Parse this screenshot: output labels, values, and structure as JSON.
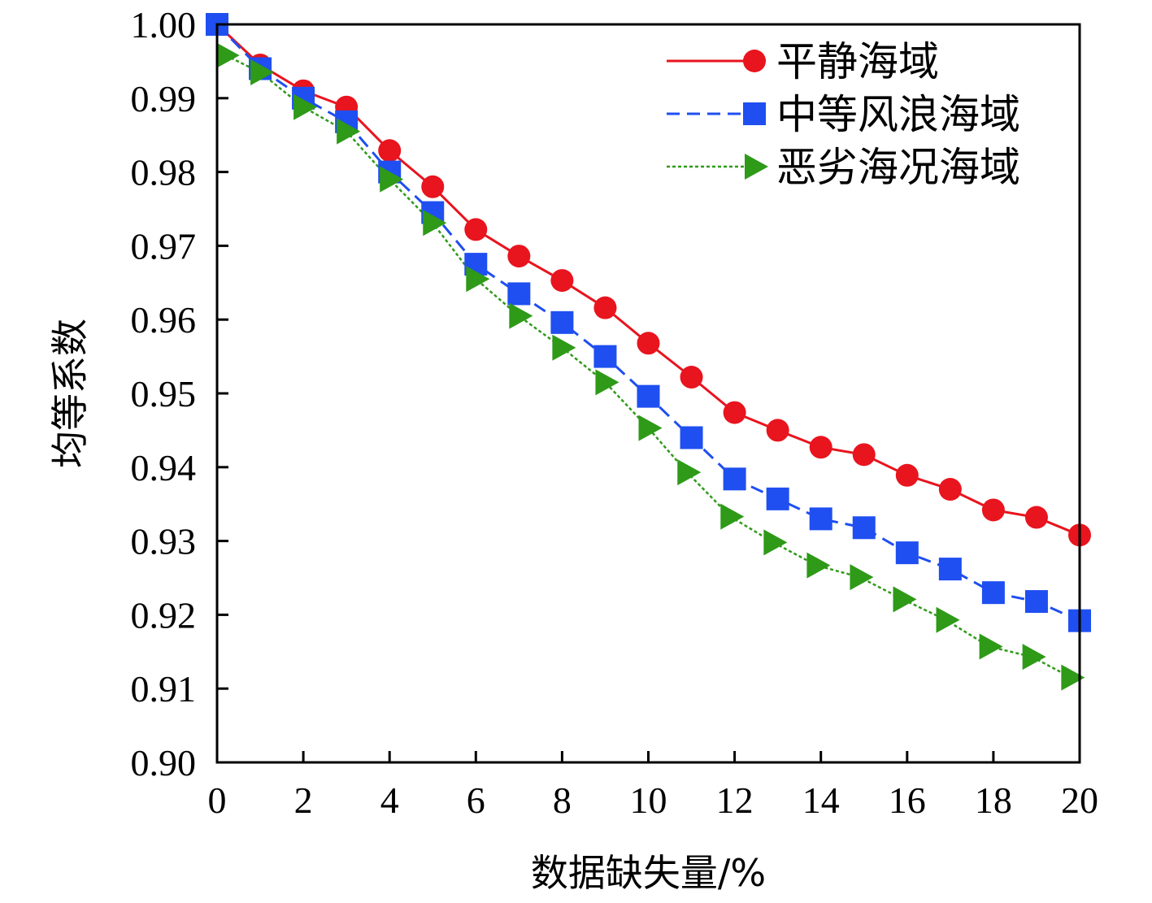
{
  "chart_data": {
    "type": "line",
    "title": "",
    "xlabel": "数据缺失量/%",
    "ylabel": "均等系数",
    "xlim": [
      0,
      20
    ],
    "ylim": [
      0.9,
      1.0
    ],
    "xticks": [
      0,
      2,
      4,
      6,
      8,
      10,
      12,
      14,
      16,
      18,
      20
    ],
    "xtick_labels": [
      "0",
      "2",
      "4",
      "6",
      "8",
      "10",
      "12",
      "14",
      "16",
      "18",
      "20"
    ],
    "yticks": [
      0.9,
      0.91,
      0.92,
      0.93,
      0.94,
      0.95,
      0.96,
      0.97,
      0.98,
      0.99,
      1.0
    ],
    "ytick_labels": [
      "0.90",
      "0.91",
      "0.92",
      "0.93",
      "0.94",
      "0.95",
      "0.96",
      "0.97",
      "0.98",
      "0.99",
      "1.00"
    ],
    "grid": false,
    "legend_position": "top-right",
    "series": [
      {
        "name": "平静海域",
        "color": "#e8141e",
        "marker": "circle",
        "line_style": "solid",
        "x": [
          0,
          1,
          2,
          3,
          4,
          5,
          6,
          7,
          8,
          9,
          10,
          11,
          12,
          13,
          14,
          15,
          16,
          17,
          18,
          19,
          20
        ],
        "values": [
          1.0,
          0.9945,
          0.991,
          0.9888,
          0.9829,
          0.978,
          0.9722,
          0.9686,
          0.9653,
          0.9616,
          0.9568,
          0.9522,
          0.9474,
          0.945,
          0.9427,
          0.9417,
          0.9389,
          0.937,
          0.9342,
          0.9332,
          0.9308
        ]
      },
      {
        "name": "中等风浪海域",
        "color": "#1f4ff0",
        "marker": "square",
        "line_style": "dashed",
        "x": [
          0,
          1,
          2,
          3,
          4,
          5,
          6,
          7,
          8,
          9,
          10,
          11,
          12,
          13,
          14,
          15,
          16,
          17,
          18,
          19,
          20
        ],
        "values": [
          1.0,
          0.994,
          0.99,
          0.9868,
          0.98,
          0.9745,
          0.9675,
          0.9635,
          0.9596,
          0.955,
          0.9496,
          0.944,
          0.9384,
          0.9357,
          0.933,
          0.9318,
          0.9284,
          0.9262,
          0.923,
          0.9218,
          0.9192
        ]
      },
      {
        "name": "恶劣海况海域",
        "color": "#2e9a18",
        "marker": "triangle-right",
        "line_style": "dotted",
        "x": [
          0.2,
          1,
          2,
          3,
          4,
          5,
          6,
          7,
          8,
          9,
          10,
          10.9,
          11.9,
          12.9,
          13.9,
          14.9,
          15.9,
          16.9,
          17.9,
          18.9,
          19.8
        ],
        "values": [
          0.9958,
          0.9935,
          0.9888,
          0.9855,
          0.979,
          0.9731,
          0.9655,
          0.9605,
          0.9562,
          0.9515,
          0.9453,
          0.9393,
          0.9333,
          0.9298,
          0.9267,
          0.9251,
          0.9221,
          0.9193,
          0.9157,
          0.9143,
          0.9115
        ]
      }
    ]
  }
}
